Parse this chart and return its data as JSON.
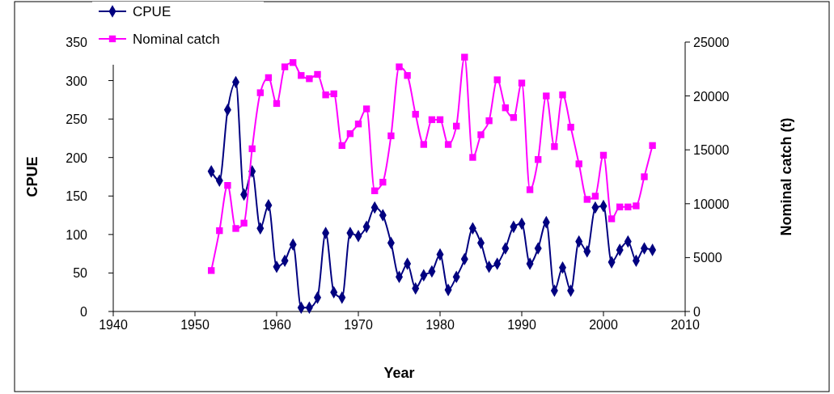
{
  "chart_data": {
    "type": "line",
    "xlabel": "Year",
    "ylabel": "CPUE",
    "y2label": "Nominal catch (t)",
    "xlim": [
      1940,
      2010
    ],
    "xticks": [
      1940,
      1950,
      1960,
      1970,
      1980,
      1990,
      2000,
      2010
    ],
    "ylim": [
      0,
      350
    ],
    "yticks": [
      0,
      50,
      100,
      150,
      200,
      250,
      300,
      350
    ],
    "y2lim": [
      0,
      25000
    ],
    "y2ticks": [
      0,
      5000,
      10000,
      15000,
      20000,
      25000
    ],
    "grid": false,
    "legend": "top left",
    "x": [
      1952,
      1953,
      1954,
      1955,
      1956,
      1957,
      1958,
      1959,
      1960,
      1961,
      1962,
      1963,
      1964,
      1965,
      1966,
      1967,
      1968,
      1969,
      1970,
      1971,
      1972,
      1973,
      1974,
      1975,
      1976,
      1977,
      1978,
      1979,
      1980,
      1981,
      1982,
      1983,
      1984,
      1985,
      1986,
      1987,
      1988,
      1989,
      1990,
      1991,
      1992,
      1993,
      1994,
      1995,
      1996,
      1997,
      1998,
      1999,
      2000,
      2001,
      2002,
      2003,
      2004,
      2005,
      2006
    ],
    "series": [
      {
        "name": "CPUE",
        "color": "#000080",
        "marker": "diamond",
        "values": [
          182,
          170,
          262,
          298,
          152,
          182,
          108,
          138,
          58,
          66,
          87,
          5,
          5,
          18,
          102,
          25,
          18,
          102,
          98,
          110,
          135,
          125,
          89,
          45,
          62,
          30,
          47,
          52,
          74,
          28,
          45,
          68,
          108,
          89,
          58,
          62,
          82,
          110,
          114,
          62,
          82,
          116,
          27,
          57,
          27,
          91,
          78,
          135,
          137,
          64,
          80,
          91,
          66,
          82,
          80
        ]
      },
      {
        "name": "Nominal catch",
        "color": "#ff00ff",
        "marker": "square",
        "axis": "y2",
        "values": [
          3800,
          7500,
          11700,
          7700,
          8200,
          15100,
          20300,
          21700,
          19300,
          22700,
          23100,
          21900,
          21600,
          22000,
          20100,
          20200,
          15400,
          16500,
          17400,
          18800,
          11200,
          12000,
          16300,
          22700,
          21900,
          18300,
          15500,
          17800,
          17800,
          15500,
          17200,
          23600,
          14300,
          16400,
          17700,
          21500,
          18900,
          18000,
          21200,
          11300,
          14100,
          20000,
          15300,
          20100,
          17100,
          13700,
          10400,
          10700,
          14500,
          8600,
          9700,
          9700,
          9800,
          12500,
          15400
        ]
      }
    ]
  }
}
